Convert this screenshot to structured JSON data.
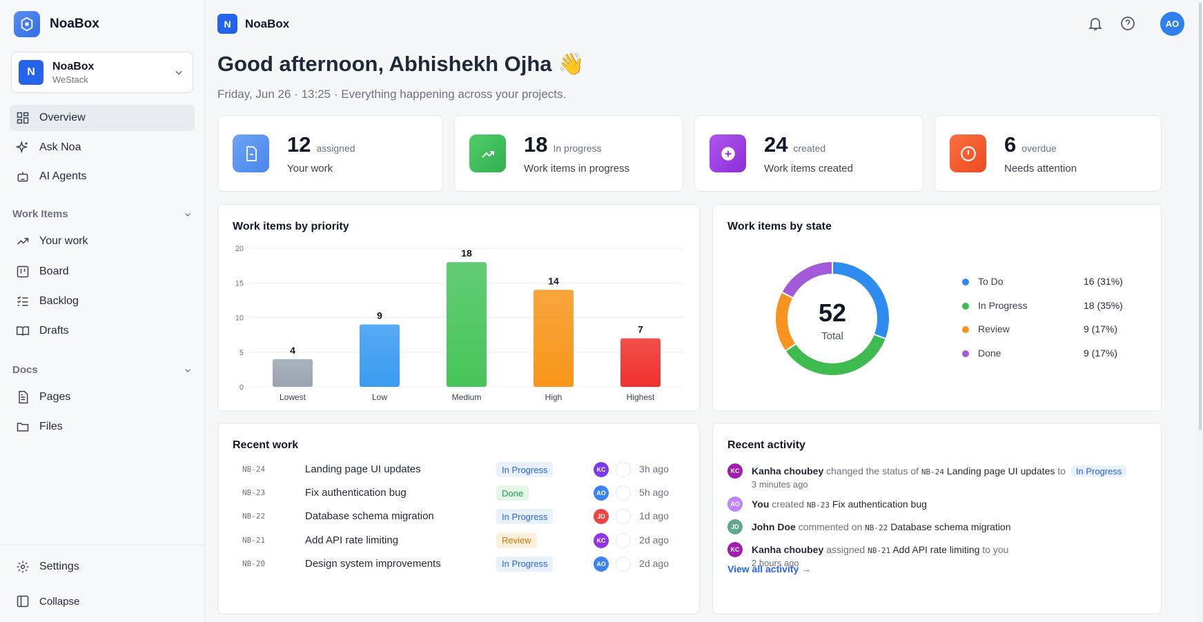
{
  "sidebar": {
    "brand": "NoaBox",
    "workspace": {
      "initial": "N",
      "name": "NoaBox",
      "sub": "WeStack"
    },
    "main_items": [
      {
        "label": "Overview",
        "icon": "grid-icon",
        "active": true
      },
      {
        "label": "Ask Noa",
        "icon": "sparkle-icon"
      },
      {
        "label": "AI Agents",
        "icon": "robot-icon"
      }
    ],
    "work_items_section": "Work Items",
    "work_items": [
      {
        "label": "Your work",
        "icon": "trend-icon"
      },
      {
        "label": "Board",
        "icon": "board-icon"
      },
      {
        "label": "Backlog",
        "icon": "list-icon"
      },
      {
        "label": "Drafts",
        "icon": "book-icon"
      }
    ],
    "docs_section": "Docs",
    "docs": [
      {
        "label": "Pages",
        "icon": "page-icon"
      },
      {
        "label": "Files",
        "icon": "folder-icon"
      }
    ],
    "settings": "Settings",
    "collapse": "Collapse"
  },
  "header": {
    "brand_initial": "N",
    "brand": "NoaBox",
    "avatar": "AO",
    "greeting": "Good afternoon, Abhishekh Ojha 👋",
    "subline": "Friday, Jun 26 · 13:25 · Everything happening across your projects."
  },
  "stats": [
    {
      "num": "12",
      "unit": "assigned",
      "caption": "Your work",
      "color": "#4d8df0",
      "icon": "document-icon"
    },
    {
      "num": "18",
      "unit": "In progress",
      "caption": "Work items in progress",
      "color": "#3dbb5a",
      "icon": "trend-up-icon"
    },
    {
      "num": "24",
      "unit": "created",
      "caption": "Work items created",
      "color": "#9b3fe0",
      "icon": "plus-circle-icon"
    },
    {
      "num": "6",
      "unit": "overdue",
      "caption": "Needs attention",
      "color": "#f25a2c",
      "icon": "alert-icon"
    }
  ],
  "priority_card_title": "Work items by priority",
  "state_card_title": "Work items by state",
  "chart_data": [
    {
      "type": "bar",
      "title": "Work items by priority",
      "categories": [
        "Lowest",
        "Low",
        "Medium",
        "High",
        "Highest"
      ],
      "values": [
        4,
        9,
        18,
        14,
        7
      ],
      "colors": [
        "#9aa5b1",
        "#3a9bf2",
        "#47c45a",
        "#f8951a",
        "#f0302e"
      ],
      "ylim": [
        0,
        20
      ],
      "yticks": [
        0,
        5,
        10,
        15,
        20
      ],
      "grid": true
    },
    {
      "type": "pie",
      "title": "Work items by state",
      "center_value": "52",
      "center_label": "Total",
      "labels": [
        "To Do",
        "In Progress",
        "Review",
        "Done"
      ],
      "values": [
        16,
        18,
        9,
        9
      ],
      "display": [
        "16 (31%)",
        "18 (35%)",
        "9 (17%)",
        "9 (17%)"
      ],
      "colors": [
        "#2e8cf0",
        "#3dbb4f",
        "#f7931e",
        "#a25ad9"
      ],
      "legend": "right"
    }
  ],
  "recent_work": {
    "title": "Recent work",
    "rows": [
      {
        "id": "NB-24",
        "title": "Landing page UI updates",
        "status": "In Progress",
        "status_kind": "progress",
        "avatar": "KC",
        "avatar_color": "#7c3aed",
        "time": "3h ago"
      },
      {
        "id": "NB-23",
        "title": "Fix authentication bug",
        "status": "Done",
        "status_kind": "done",
        "avatar": "AO",
        "avatar_color": "#3b82f6",
        "time": "5h ago"
      },
      {
        "id": "NB-22",
        "title": "Database schema migration",
        "status": "In Progress",
        "status_kind": "progress",
        "avatar": "JD",
        "avatar_color": "#ef4444",
        "time": "1d ago"
      },
      {
        "id": "NB-21",
        "title": "Add API rate limiting",
        "status": "Review",
        "status_kind": "review",
        "avatar": "KC",
        "avatar_color": "#9333ea",
        "time": "2d ago"
      },
      {
        "id": "NB-20",
        "title": "Design system improvements",
        "status": "In Progress",
        "status_kind": "progress",
        "avatar": "AO",
        "avatar_color": "#3b82f6",
        "time": "2d ago"
      }
    ]
  },
  "recent_activity": {
    "title": "Recent activity",
    "items": [
      {
        "avatar": "KC",
        "avatar_color": "#a21caf",
        "who": "Kanha choubey",
        "verb": "changed the status of",
        "id": "NB-24",
        "item": "Landing page UI updates",
        "tail": "to",
        "badge": "In Progress",
        "sub": "3 minutes ago"
      },
      {
        "avatar": "AO",
        "avatar_color": "#c084fc",
        "who": "You",
        "verb": "created",
        "id": "NB-23",
        "item": "Fix authentication bug",
        "tail": "",
        "badge": "",
        "sub": ""
      },
      {
        "avatar": "JD",
        "avatar_color": "#5fa98c",
        "who": "John Doe",
        "verb": "commented on",
        "id": "NB-22",
        "item": "Database schema migration",
        "tail": "",
        "badge": "",
        "sub": ""
      },
      {
        "avatar": "KC",
        "avatar_color": "#a21caf",
        "who": "Kanha choubey",
        "verb": "assigned",
        "id": "NB-21",
        "item": "Add API rate limiting",
        "tail": "to you",
        "badge": "",
        "sub": "2 hours ago"
      }
    ],
    "view_all": "View all activity →"
  }
}
